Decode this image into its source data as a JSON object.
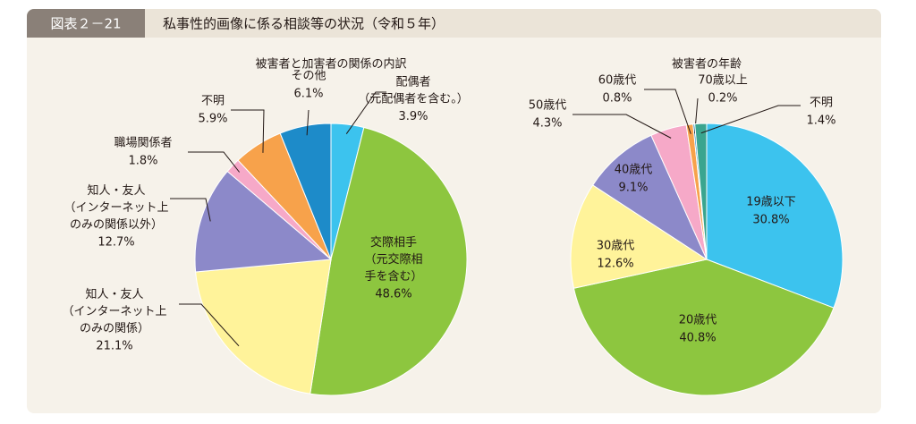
{
  "figure_number": "図表２－21",
  "figure_title": "私事性的画像に係る相談等の状況（令和５年）",
  "chart_data": [
    {
      "type": "pie",
      "title": "被害者と加害者の関係の内訳",
      "categories": [
        "配偶者\n（元配偶者を含む。）",
        "交際相手\n（元交際相\n手を含む）",
        "知人・友人\n（インターネット上\nのみの関係）",
        "知人・友人\n（インターネット上\nのみの関係以外）",
        "職場関係者",
        "不明",
        "その他"
      ],
      "values": [
        3.9,
        48.6,
        21.1,
        12.7,
        1.8,
        5.9,
        6.1
      ],
      "value_labels": [
        "3.9%",
        "48.6%",
        "21.1%",
        "12.7%",
        "1.8%",
        "5.9%",
        "6.1%"
      ],
      "colors": [
        "#3cc3ee",
        "#8dc63f",
        "#fff39a",
        "#8c89c9",
        "#f6a9c8",
        "#f7a24b",
        "#1d8bc9"
      ]
    },
    {
      "type": "pie",
      "title": "被害者の年齢",
      "categories": [
        "19歳以下",
        "20歳代",
        "30歳代",
        "40歳代",
        "50歳代",
        "60歳代",
        "70歳以上",
        "不明"
      ],
      "values": [
        30.8,
        40.8,
        12.6,
        9.1,
        4.3,
        0.8,
        0.2,
        1.4
      ],
      "value_labels": [
        "30.8%",
        "40.8%",
        "12.6%",
        "9.1%",
        "4.3%",
        "0.8%",
        "0.2%",
        "1.4%"
      ],
      "colors": [
        "#3cc3ee",
        "#8dc63f",
        "#fff39a",
        "#8c89c9",
        "#f6a9c8",
        "#f7a24b",
        "#1d8bc9",
        "#3aa58f"
      ]
    }
  ]
}
